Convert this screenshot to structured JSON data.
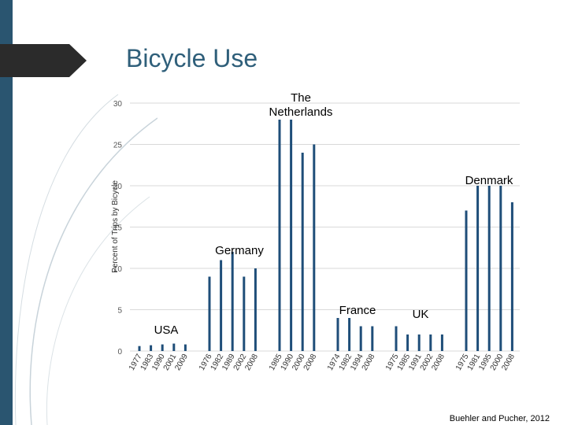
{
  "title": "Bicycle Use",
  "citation": "Buehler and Pucher, 2012",
  "colors": {
    "bar": "#1f4e79",
    "accent": "#2f5f7a",
    "grid": "#d9d9d9",
    "sidebar": "#2a5570"
  },
  "chart_data": {
    "type": "bar",
    "ylabel": "Percent of Trips by Bicycle",
    "ylim": [
      0,
      30
    ],
    "yticks": [
      0,
      5,
      10,
      15,
      20,
      25,
      30
    ],
    "grid": true,
    "groups": [
      {
        "name": "USA",
        "label": "USA",
        "categories": [
          "1977",
          "1983",
          "1990",
          "2001",
          "2009"
        ],
        "values": [
          0.6,
          0.7,
          0.8,
          0.9,
          0.8
        ]
      },
      {
        "name": "Germany",
        "label": "Germany",
        "categories": [
          "1976",
          "1982",
          "1989",
          "2002",
          "2008"
        ],
        "values": [
          9,
          11,
          12,
          9,
          10
        ]
      },
      {
        "name": "The Netherlands",
        "label": "The Netherlands",
        "categories": [
          "1985",
          "1990",
          "2000",
          "2008"
        ],
        "values": [
          28,
          28,
          24,
          25
        ]
      },
      {
        "name": "France",
        "label": "France",
        "categories": [
          "1974",
          "1982",
          "1994",
          "2008"
        ],
        "values": [
          4,
          4,
          3,
          3
        ]
      },
      {
        "name": "UK",
        "label": "UK",
        "categories": [
          "1975",
          "1985",
          "1991",
          "2002",
          "2008"
        ],
        "values": [
          3,
          2,
          2,
          2,
          2
        ]
      },
      {
        "name": "Denmark",
        "label": "Denmark",
        "categories": [
          "1975",
          "1981",
          "1995",
          "2000",
          "2008"
        ],
        "values": [
          17,
          20,
          20,
          20,
          18
        ]
      }
    ]
  }
}
